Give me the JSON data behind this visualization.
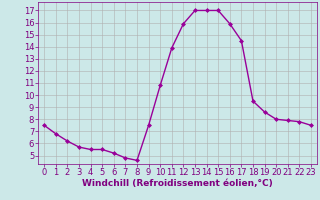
{
  "x": [
    0,
    1,
    2,
    3,
    4,
    5,
    6,
    7,
    8,
    9,
    10,
    11,
    12,
    13,
    14,
    15,
    16,
    17,
    18,
    19,
    20,
    21,
    22,
    23
  ],
  "y": [
    7.5,
    6.8,
    6.2,
    5.7,
    5.5,
    5.5,
    5.2,
    4.8,
    4.6,
    7.5,
    10.8,
    13.9,
    15.9,
    17.0,
    17.0,
    17.0,
    15.9,
    14.5,
    9.5,
    8.6,
    8.0,
    7.9,
    7.8,
    7.5
  ],
  "line_color": "#990099",
  "marker": "D",
  "marker_size": 2.0,
  "bg_color": "#cce8e8",
  "grid_color": "#b0b0b0",
  "xlabel": "Windchill (Refroidissement éolien,°C)",
  "xlim": [
    -0.5,
    23.5
  ],
  "ylim": [
    4.3,
    17.7
  ],
  "yticks": [
    5,
    6,
    7,
    8,
    9,
    10,
    11,
    12,
    13,
    14,
    15,
    16,
    17
  ],
  "xticks": [
    0,
    1,
    2,
    3,
    4,
    5,
    6,
    7,
    8,
    9,
    10,
    11,
    12,
    13,
    14,
    15,
    16,
    17,
    18,
    19,
    20,
    21,
    22,
    23
  ],
  "label_fontsize": 6.5,
  "tick_fontsize": 6.0,
  "line_width": 1.0,
  "axes_color": "#800080"
}
